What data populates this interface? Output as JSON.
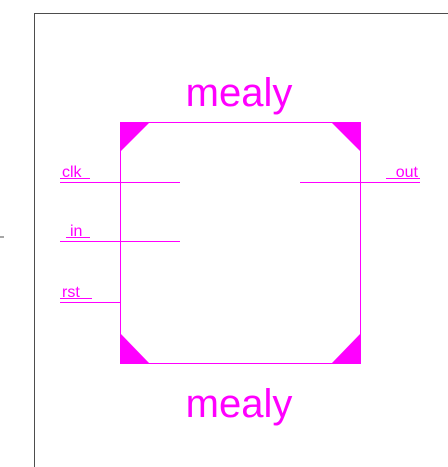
{
  "symbol": {
    "name_top": "mealy",
    "name_bottom": "mealy",
    "inputs": [
      "clk",
      "in",
      "rst"
    ],
    "outputs": [
      "out"
    ]
  },
  "colors": {
    "accent": "#ff00ff",
    "frame": "#4d4d4d",
    "background": "#ffffff"
  }
}
